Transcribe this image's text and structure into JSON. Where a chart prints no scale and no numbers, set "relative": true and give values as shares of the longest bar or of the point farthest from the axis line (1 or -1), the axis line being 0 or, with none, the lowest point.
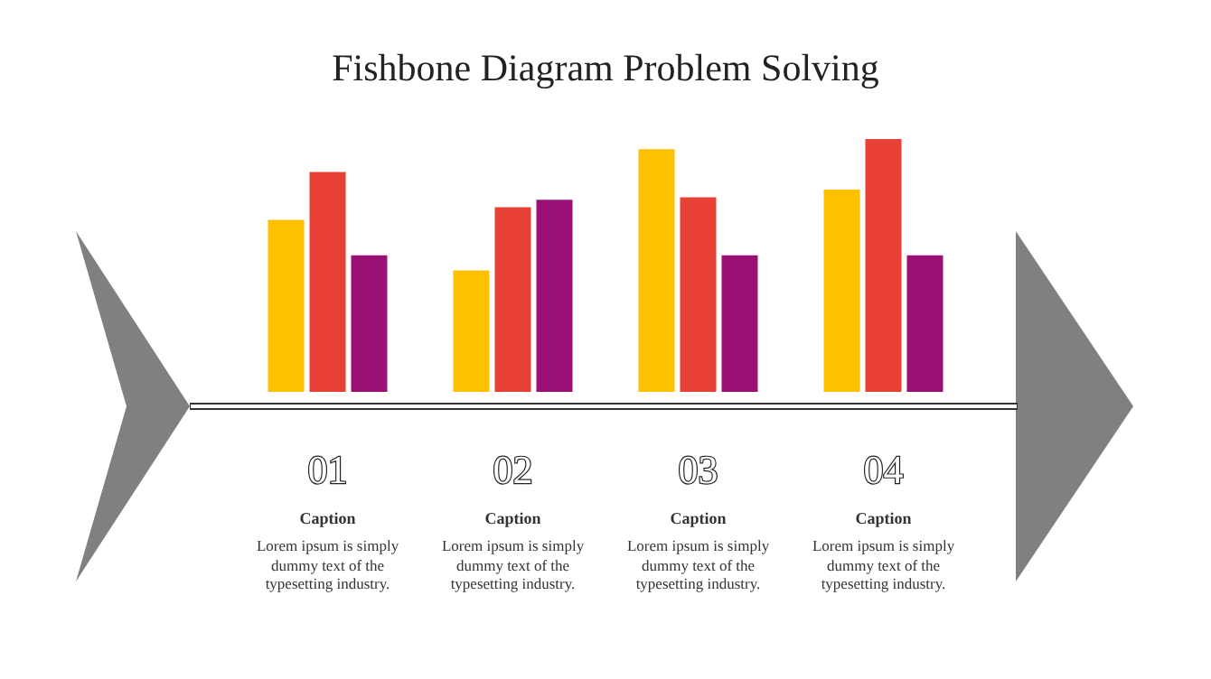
{
  "chart_data": {
    "type": "bar",
    "title": "Fishbone Diagram Problem Solving",
    "relative": true,
    "categories": [
      "01",
      "02",
      "03",
      "04"
    ],
    "series": [
      {
        "color": "#ffc000",
        "values": [
          0.68,
          0.48,
          0.96,
          0.8
        ]
      },
      {
        "color": "#e84034",
        "values": [
          0.87,
          0.73,
          0.77,
          1
        ]
      },
      {
        "color": "#9b1075",
        "values": [
          0.54,
          0.76,
          0.54,
          0.54
        ]
      }
    ],
    "annotations": [
      "Caption",
      "Lorem ipsum is simply dummy text of the typesetting industry.",
      "Caption",
      "Lorem ipsum is simply dummy text of the typesetting industry.",
      "Caption",
      "Lorem ipsum is simply dummy text of the typesetting industry.",
      "Caption",
      "Lorem ipsum is simply dummy text of the typesetting industry."
    ],
    "stacked": false
  }
}
